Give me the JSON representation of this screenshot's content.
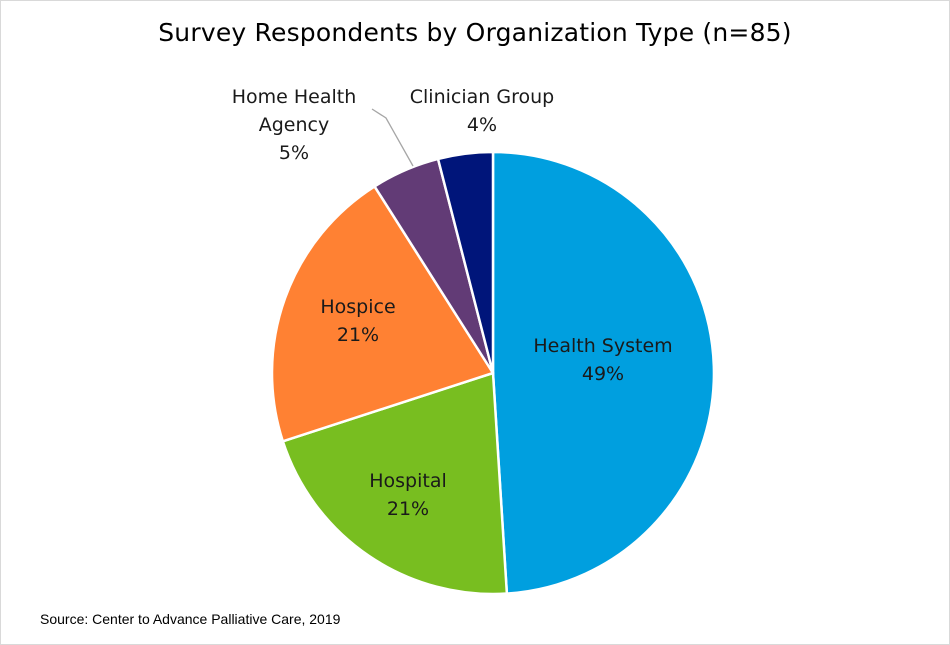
{
  "chart_data": {
    "type": "pie",
    "title": "Survey Respondents by Organization Type (n=85)",
    "start_angle_deg": 0,
    "direction": "clockwise",
    "slices": [
      {
        "name": "Health System",
        "label_lines": [
          "Health System"
        ],
        "value": 49,
        "pct_label": "49%",
        "color": "#009FDF"
      },
      {
        "name": "Hospital",
        "label_lines": [
          "Hospital"
        ],
        "value": 21,
        "pct_label": "21%",
        "color": "#78BE20"
      },
      {
        "name": "Hospice",
        "label_lines": [
          "Hospice"
        ],
        "value": 21,
        "pct_label": "21%",
        "color": "#FF8133"
      },
      {
        "name": "Home Health Agency",
        "label_lines": [
          "Home Health",
          "Agency"
        ],
        "value": 5,
        "pct_label": "5%",
        "color": "#623B76"
      },
      {
        "name": "Clinician Group",
        "label_lines": [
          "Clinician Group"
        ],
        "value": 4,
        "pct_label": "4%",
        "color": "#00157A"
      }
    ]
  },
  "source": "Source: Center to Advance Palliative Care, 2019"
}
